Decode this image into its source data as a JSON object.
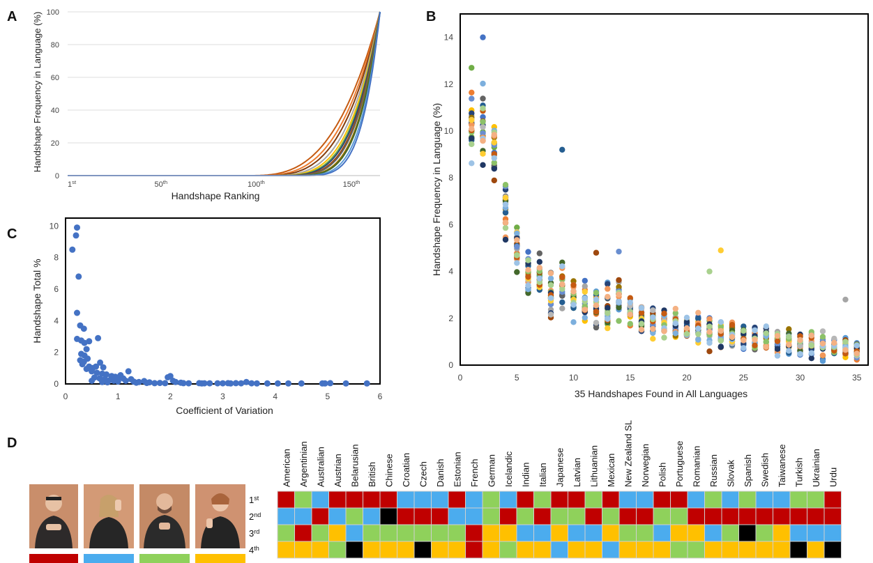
{
  "panels": {
    "a": "A",
    "b": "B",
    "c": "C",
    "d": "D"
  },
  "chart_data": [
    {
      "type": "line",
      "panel": "A",
      "title": "",
      "xlabel": "Handshape Ranking",
      "ylabel": "Handshape Frequency in Language (%)",
      "xlim": [
        1,
        165
      ],
      "ylim": [
        0,
        100
      ],
      "y_ticks": [
        "0",
        "20",
        "40",
        "60",
        "80",
        "100"
      ],
      "x_ticks": [
        {
          "value": 1,
          "num": "1",
          "suffix": "st"
        },
        {
          "value": 50,
          "num": "50",
          "suffix": "th"
        },
        {
          "value": 100,
          "num": "100",
          "suffix": "th"
        },
        {
          "value": 150,
          "num": "150",
          "suffix": "th"
        }
      ],
      "grid": true,
      "series_note": "cumulative frequency curves, one per language",
      "series": [
        {
          "color": "#c55a11",
          "start": 95,
          "steepness": 3.0
        },
        {
          "color": "#ed7d31",
          "start": 98,
          "steepness": 3.2
        },
        {
          "color": "#843c0c",
          "start": 100,
          "steepness": 3.4
        },
        {
          "color": "#a5a5a5",
          "start": 103,
          "steepness": 3.6
        },
        {
          "color": "#ffc000",
          "start": 105,
          "steepness": 3.8
        },
        {
          "color": "#70ad47",
          "start": 107,
          "steepness": 3.9
        },
        {
          "color": "#264478",
          "start": 108,
          "steepness": 4.0
        },
        {
          "color": "#9e480e",
          "start": 110,
          "steepness": 4.1
        },
        {
          "color": "#636363",
          "start": 111,
          "steepness": 4.2
        },
        {
          "color": "#997300",
          "start": 113,
          "steepness": 4.4
        },
        {
          "color": "#43682b",
          "start": 114,
          "steepness": 4.5
        },
        {
          "color": "#5b9bd5",
          "start": 116,
          "steepness": 4.8
        },
        {
          "color": "#4472c4",
          "start": 118,
          "steepness": 5.0
        }
      ]
    },
    {
      "type": "scatter",
      "panel": "B",
      "title": "",
      "xlabel": "35 Handshapes Found in All Languages",
      "ylabel": "Handshape Frequency in Language (%)",
      "xlim": [
        0,
        36
      ],
      "ylim": [
        0,
        15
      ],
      "x_ticks": [
        0,
        5,
        10,
        15,
        20,
        25,
        30,
        35
      ],
      "y_ticks": [
        0,
        2,
        4,
        6,
        8,
        10,
        12,
        14
      ],
      "grid": false,
      "handshape_means": [
        10.2,
        9.9,
        9.3,
        6.6,
        4.9,
        4.0,
        3.7,
        3.0,
        3.3,
        2.8,
        2.7,
        2.6,
        2.5,
        2.8,
        2.3,
        2.0,
        1.9,
        1.9,
        1.7,
        1.6,
        1.5,
        1.5,
        1.4,
        1.3,
        1.2,
        1.2,
        1.1,
        1.0,
        1.0,
        0.9,
        0.9,
        0.8,
        0.8,
        0.7,
        0.6
      ],
      "handshape_spread": [
        1.7,
        1.9,
        1.6,
        1.2,
        0.9,
        0.8,
        0.8,
        1.0,
        0.9,
        0.8,
        0.8,
        0.7,
        0.9,
        0.8,
        0.7,
        0.6,
        0.6,
        0.6,
        0.6,
        0.6,
        0.6,
        0.7,
        0.6,
        0.6,
        0.5,
        0.5,
        0.5,
        0.5,
        0.5,
        0.5,
        0.5,
        0.5,
        0.4,
        0.5,
        0.4
      ],
      "notable_points": [
        {
          "x": 2,
          "y": 14.0
        },
        {
          "x": 1,
          "y": 12.7
        },
        {
          "x": 9,
          "y": 9.2
        },
        {
          "x": 23,
          "y": 4.9
        },
        {
          "x": 22,
          "y": 4.0
        },
        {
          "x": 34,
          "y": 2.8
        },
        {
          "x": 12,
          "y": 4.8
        },
        {
          "x": 14,
          "y": 4.85
        }
      ],
      "palette": [
        "#4472c4",
        "#ed7d31",
        "#a5a5a5",
        "#ffc000",
        "#5b9bd5",
        "#70ad47",
        "#264478",
        "#9e480e",
        "#636363",
        "#997300",
        "#255e91",
        "#43682b",
        "#698ed0",
        "#f1975a",
        "#b7b7b7",
        "#ffcd33",
        "#7cafdd",
        "#8cc168",
        "#203864",
        "#c55a11",
        "#a9d18e",
        "#9dc3e6",
        "#f4b183"
      ]
    },
    {
      "type": "scatter",
      "panel": "C",
      "title": "",
      "xlabel": "Coefficient of Variation",
      "ylabel": "Handshape Total %",
      "xlim": [
        0,
        6
      ],
      "ylim": [
        0,
        10.5
      ],
      "x_ticks": [
        0,
        1,
        2,
        3,
        4,
        5,
        6
      ],
      "y_ticks": [
        0,
        2,
        4,
        6,
        8,
        10
      ],
      "grid": false,
      "color": "#4472c4",
      "points": [
        [
          0.13,
          8.5
        ],
        [
          0.2,
          9.4
        ],
        [
          0.22,
          9.9
        ],
        [
          0.25,
          6.8
        ],
        [
          0.22,
          4.5
        ],
        [
          0.28,
          3.7
        ],
        [
          0.35,
          3.5
        ],
        [
          0.22,
          2.85
        ],
        [
          0.3,
          2.75
        ],
        [
          0.36,
          2.6
        ],
        [
          0.45,
          2.7
        ],
        [
          0.62,
          2.9
        ],
        [
          0.4,
          2.2
        ],
        [
          0.3,
          1.9
        ],
        [
          0.36,
          1.8
        ],
        [
          0.42,
          1.6
        ],
        [
          0.28,
          1.5
        ],
        [
          0.35,
          1.4
        ],
        [
          0.32,
          1.25
        ],
        [
          0.45,
          1.1
        ],
        [
          0.52,
          1.0
        ],
        [
          0.58,
          1.1
        ],
        [
          0.66,
          1.35
        ],
        [
          0.72,
          1.05
        ],
        [
          0.4,
          0.95
        ],
        [
          0.5,
          0.8
        ],
        [
          0.6,
          0.7
        ],
        [
          0.7,
          0.65
        ],
        [
          0.78,
          0.6
        ],
        [
          0.88,
          0.5
        ],
        [
          0.95,
          0.45
        ],
        [
          1.05,
          0.55
        ],
        [
          1.2,
          0.8
        ],
        [
          1.1,
          0.35
        ],
        [
          1.25,
          0.3
        ],
        [
          0.55,
          0.4
        ],
        [
          0.65,
          0.35
        ],
        [
          0.75,
          0.3
        ],
        [
          0.85,
          0.25
        ],
        [
          0.92,
          0.2
        ],
        [
          1.0,
          0.15
        ],
        [
          1.15,
          0.2
        ],
        [
          1.3,
          0.15
        ],
        [
          1.4,
          0.12
        ],
        [
          1.5,
          0.18
        ],
        [
          1.6,
          0.1
        ],
        [
          0.8,
          0.1
        ],
        [
          0.7,
          0.12
        ],
        [
          1.0,
          0.3
        ],
        [
          1.35,
          0.08
        ],
        [
          1.55,
          0.06
        ],
        [
          1.8,
          0.06
        ],
        [
          1.9,
          0.05
        ],
        [
          1.95,
          0.42
        ],
        [
          2.0,
          0.5
        ],
        [
          2.05,
          0.2
        ],
        [
          2.1,
          0.12
        ],
        [
          2.2,
          0.08
        ],
        [
          2.25,
          0.05
        ],
        [
          2.35,
          0.04
        ],
        [
          2.55,
          0.05
        ],
        [
          2.65,
          0.04
        ],
        [
          2.75,
          0.04
        ],
        [
          2.9,
          0.04
        ],
        [
          3.0,
          0.04
        ],
        [
          3.15,
          0.03
        ],
        [
          3.25,
          0.05
        ],
        [
          3.35,
          0.04
        ],
        [
          3.45,
          0.12
        ],
        [
          3.55,
          0.04
        ],
        [
          3.65,
          0.03
        ],
        [
          3.85,
          0.03
        ],
        [
          4.05,
          0.03
        ],
        [
          4.25,
          0.03
        ],
        [
          4.5,
          0.03
        ],
        [
          4.9,
          0.03
        ],
        [
          4.95,
          0.03
        ],
        [
          5.05,
          0.05
        ],
        [
          5.35,
          0.03
        ],
        [
          5.75,
          0.03
        ],
        [
          1.7,
          0.05
        ],
        [
          2.6,
          0.03
        ],
        [
          3.1,
          0.05
        ],
        [
          0.5,
          0.2
        ]
      ]
    },
    {
      "type": "heatmap",
      "panel": "D",
      "title": "",
      "languages": [
        "American",
        "Argentinian",
        "Australian",
        "Austrian",
        "Belarusian",
        "British",
        "Chinese",
        "Croatian",
        "Czech",
        "Danish",
        "Estonian",
        "French",
        "German",
        "Icelandic",
        "Indian",
        "Italian",
        "Japanese",
        "Latvian",
        "Lithuanian",
        "Mexican",
        "New Zealand SL",
        "Norwegian",
        "Polish",
        "Portuguese",
        "Romanian",
        "Russian",
        "Slovak",
        "Spanish",
        "Swedish",
        "Taiwanese",
        "Turkish",
        "Ukrainian",
        "Urdu"
      ],
      "ranks": [
        {
          "num": "1",
          "suffix": "st"
        },
        {
          "num": "2",
          "suffix": "nd"
        },
        {
          "num": "3",
          "suffix": "rd"
        },
        {
          "num": "4",
          "suffix": "th"
        }
      ],
      "handshape_colors": [
        "#c00000",
        "#4bacee",
        "#8fd15b",
        "#ffc000",
        "#000000"
      ],
      "grid": [
        [
          0,
          2,
          1,
          0,
          0,
          0,
          0,
          1,
          1,
          1,
          0,
          1,
          2,
          1,
          0,
          2,
          0,
          0,
          2,
          0,
          1,
          1,
          0,
          0,
          1,
          2,
          1,
          2,
          1,
          1,
          2,
          2,
          0
        ],
        [
          1,
          1,
          0,
          1,
          2,
          1,
          4,
          0,
          0,
          0,
          1,
          1,
          2,
          0,
          2,
          0,
          2,
          2,
          0,
          2,
          0,
          0,
          2,
          2,
          0,
          0,
          0,
          0,
          0,
          0,
          0,
          0,
          0
        ],
        [
          2,
          0,
          2,
          3,
          1,
          2,
          2,
          2,
          2,
          2,
          2,
          0,
          3,
          3,
          1,
          1,
          3,
          1,
          1,
          3,
          2,
          2,
          1,
          3,
          3,
          1,
          2,
          4,
          2,
          3,
          1,
          1,
          1
        ],
        [
          3,
          3,
          3,
          2,
          4,
          3,
          3,
          3,
          4,
          3,
          3,
          0,
          3,
          2,
          3,
          3,
          1,
          3,
          3,
          1,
          3,
          3,
          3,
          2,
          2,
          3,
          3,
          3,
          3,
          3,
          4,
          3,
          4
        ]
      ]
    }
  ]
}
